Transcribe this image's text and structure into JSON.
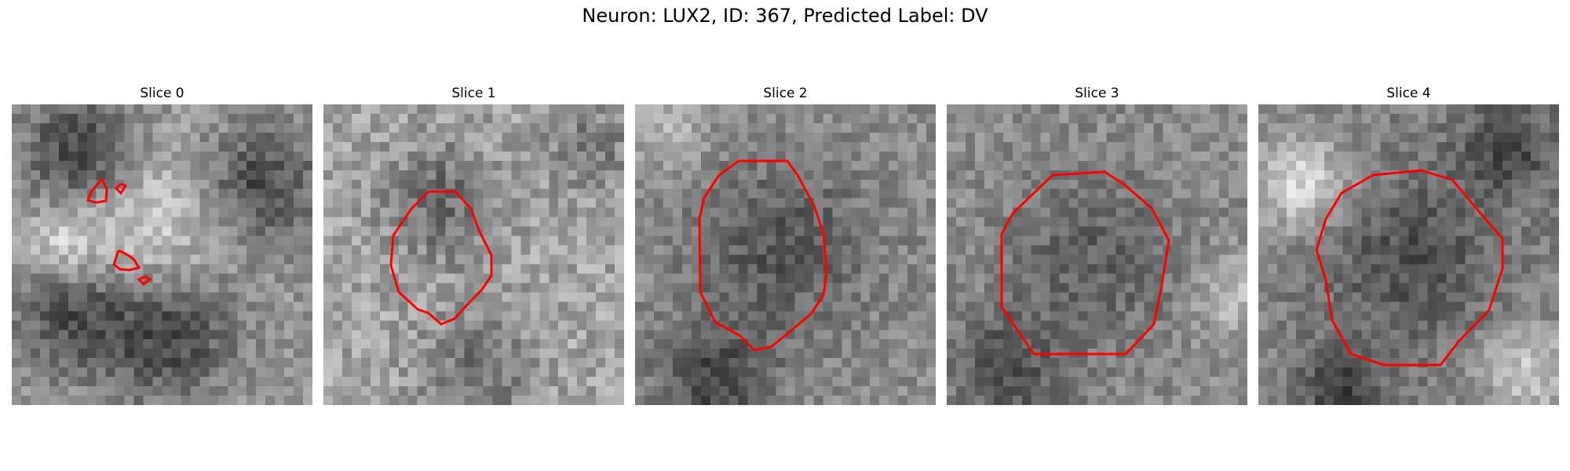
{
  "figure": {
    "title": "Neuron: LUX2, ID: 367, Predicted Label: DV"
  },
  "panels": [
    {
      "title": "Slice 0"
    },
    {
      "title": "Slice 1"
    },
    {
      "title": "Slice 2"
    },
    {
      "title": "Slice 3"
    },
    {
      "title": "Slice 4"
    }
  ],
  "colors": {
    "contour": "#ff0000",
    "background": "#ffffff"
  }
}
